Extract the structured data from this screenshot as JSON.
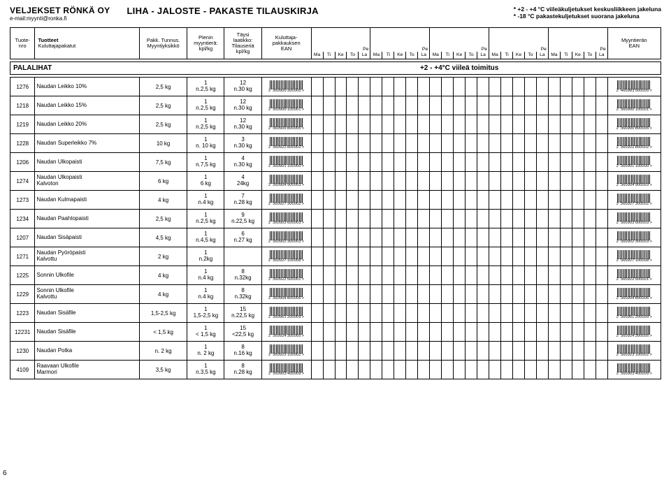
{
  "header": {
    "company": "VELJEKSET RÖNKÄ OY",
    "email": "e-mail:myynti@ronka.fi",
    "title": "LIHA - JALOSTE - PAKASTE TILAUSKIRJA",
    "note1": "* +2 - +4 °C viileäkuljetukset keskusliikkeen jakeluna",
    "note2": "* -18 °C pakastekuljetukset suorana jakeluna"
  },
  "columns": {
    "tuotenro": "Tuote-\nnro",
    "tuotteet": "Tuotteet",
    "kulut": "Kuluttajapakatut",
    "pack_top": "Pakk. Tunnus.",
    "pack_bot": "Myyntiyksikkö",
    "min_top": "Pienin",
    "min_mid": "myyntierä:",
    "min_bot": "kpl/kg",
    "box_top": "Täysi",
    "box_mid1": "laatikko:",
    "box_mid2": "Tilauseriä",
    "box_bot": "kpl/kg",
    "ean_top": "Kuluttaja-",
    "ean_mid": "pakkauksen",
    "ean_bot": "EAN",
    "ean2_top": "Myyntierän",
    "ean2_bot": "EAN",
    "pe": "Pe",
    "days": [
      "Ma",
      "Ti",
      "Ke",
      "To",
      "La"
    ]
  },
  "section": {
    "title": "PALALIHAT",
    "note": "+2 - +4°C viileä toimitus"
  },
  "rows": [
    {
      "nro": "1276",
      "name": "Naudan Leikko 10%",
      "pack": "2,5 kg",
      "min1": "1",
      "min2": "n.2,5 kg",
      "box1": "12",
      "box2": "n.30 kg",
      "ean1": "2 '360900'300005'>",
      "ean2": "2 '460983'500005'>"
    },
    {
      "nro": "1218",
      "name": "Naudan Leikko 15%",
      "pack": "2,5 kg",
      "min1": "1",
      "min2": "n.2,5 kg",
      "box1": "12",
      "box2": "n.30 kg",
      "ean1": "2 '360900'100001'>",
      "ean2": "2 '360900'100001'>"
    },
    {
      "nro": "1219",
      "name": "Naudan Leikko 20%",
      "pack": "2,5 kg",
      "min1": "1",
      "min2": "n.2,5 kg",
      "box1": "12",
      "box2": "n.30 kg",
      "ean1": "2 '360900'800005'>",
      "ean2": "2 '360900'800005'>"
    },
    {
      "nro": "1228",
      "name": "Naudan Superleikko 7%",
      "pack": "10 kg",
      "min1": "1",
      "min2": "n. 10 kg",
      "box1": "3",
      "box2": "n.30 kg",
      "ean1": "2 '360922'800002'>",
      "ean2": "2 '360922'800002'>"
    },
    {
      "nro": "1206",
      "name": "Naudan Ulkopaisti",
      "pack": "7,5 kg",
      "min1": "1",
      "min2": "n.7,5 kg",
      "box1": "4",
      "box2": "n.30 kg",
      "ean1": "2 '360901'100000'>",
      "ean2": "2 '360901'100000'>"
    },
    {
      "nro": "1274",
      "name": "Naudan Ulkopaisti\nKalvoton",
      "pack": "6 kg",
      "min1": "1",
      "min2": "6 kg",
      "box1": "4",
      "box2": "24kg",
      "ean1": "2 '360904'900003'>",
      "ean2": "2 '360904'900003'>"
    },
    {
      "nro": "1273",
      "name": "Naudan Kulmapaisti",
      "pack": "4 kg",
      "min1": "1",
      "min2": "n.4 kg",
      "box1": "7",
      "box2": "n.28 kg",
      "ean1": "2 '360927'300002'>",
      "ean2": "2 '360927'300002'>"
    },
    {
      "nro": "1234",
      "name": "Naudan Paahtopaisti",
      "pack": "2,5 kg",
      "min1": "1",
      "min2": "n.2,5 kg",
      "box1": "9",
      "box2": "n.22,5 kg",
      "ean1": "2 '360903'600003'>",
      "ean2": "2 '360903'600003'>"
    },
    {
      "nro": "1207",
      "name": "Naudan Sisäpaisti",
      "pack": "4,5 kg",
      "min1": "1",
      "min2": "n.4,5 kg",
      "box1": "6",
      "box2": "n.27 kg",
      "ean1": "2 '360902'300003'>",
      "ean2": "2 '360902'300003'>"
    },
    {
      "nro": "1271",
      "name": "Naudan Pyöröpaisti\nKalvottu",
      "pack": "2 kg",
      "min1": "1",
      "min2": "n.2kg",
      "box1": "",
      "box2": "",
      "ean1": "2 '360927'100008'>",
      "ean2": "2 '360927'100008'>"
    },
    {
      "nro": "1225",
      "name": "Sonnin Ulkofile",
      "pack": "4 kg",
      "min1": "1",
      "min2": "n.4 kg",
      "box1": "8",
      "box2": "n.32kg",
      "ean1": "2 '360922'500001'>",
      "ean2": "2 '360922'500001'>"
    },
    {
      "nro": "1229",
      "name": "Sonnin Ulkofile\nKalvottu",
      "pack": "4 kg",
      "min1": "1",
      "min2": "n.4 kg",
      "box1": "8",
      "box2": "n.32kg",
      "ean1": "2 '360904'800006'>",
      "ean2": "2 '360904'800006'>"
    },
    {
      "nro": "1223",
      "name": "Naudan Sisäfile",
      "pack": "1,5-2,5 kg",
      "min1": "1",
      "min2": "1,5-2,5 kg",
      "box1": "15",
      "box2": "n.22,5 kg",
      "ean1": "2 '360961'200009'>",
      "ean2": "2 '360961'200009'>"
    },
    {
      "nro": "12231",
      "name": "Naudan Sisäfile",
      "pack": "< 1,5 kg",
      "min1": "1",
      "min2": "< 1,5 kg",
      "box1": "15",
      "box2": "<22,5 kg",
      "ean1": "2 '360924'300005'>",
      "ean2": "2 '360924'300005'>"
    },
    {
      "nro": "1230",
      "name": "Naudan Potka",
      "pack": "n. 2 kg",
      "min1": "1",
      "min2": "n. 2 kg",
      "box1": "8",
      "box2": "n.16 kg",
      "ean1": "2 '360923'100002'>",
      "ean2": "2 '360923'100002'>"
    },
    {
      "nro": "4109",
      "name": "Raavaan Ulkofile\nMarmori",
      "pack": "3,5 kg",
      "min1": "1",
      "min2": "n.3,5 kg",
      "box1": "8",
      "box2": "n.28 kg",
      "ean1": "2 '360903'400009'>",
      "ean2": "2 '360903'400009'>"
    }
  ],
  "pgnum": "6"
}
